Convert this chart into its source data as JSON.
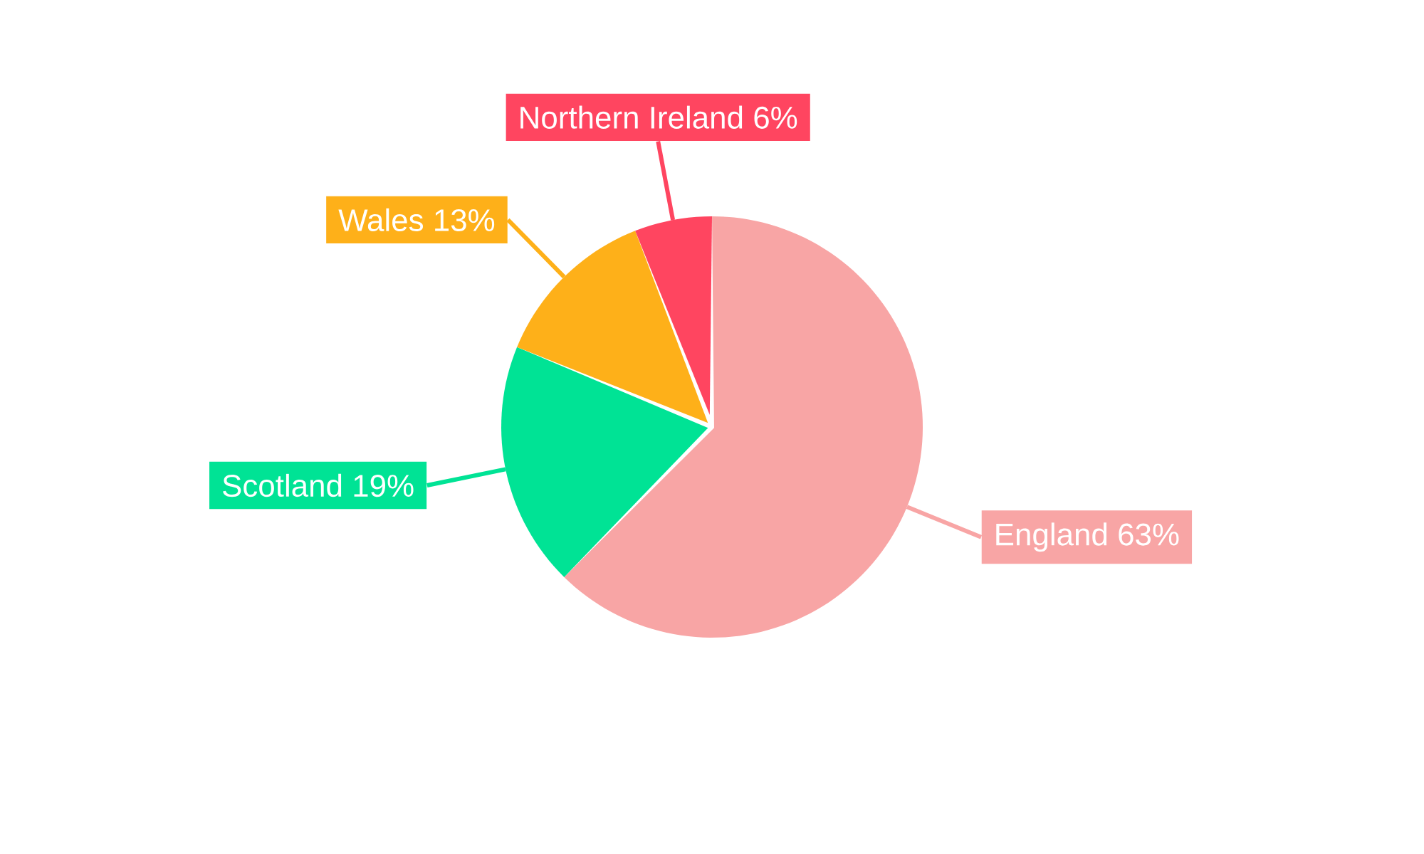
{
  "chart_data": {
    "type": "pie",
    "categories": [
      "England",
      "Scotland",
      "Wales",
      "Northern Ireland"
    ],
    "values": [
      63,
      19,
      13,
      6
    ],
    "value_labels": [
      "63%",
      "19%",
      "13%",
      "6%"
    ],
    "colors": [
      "#f8a5a5",
      "#00e395",
      "#feb019",
      "#ff4560"
    ]
  }
}
